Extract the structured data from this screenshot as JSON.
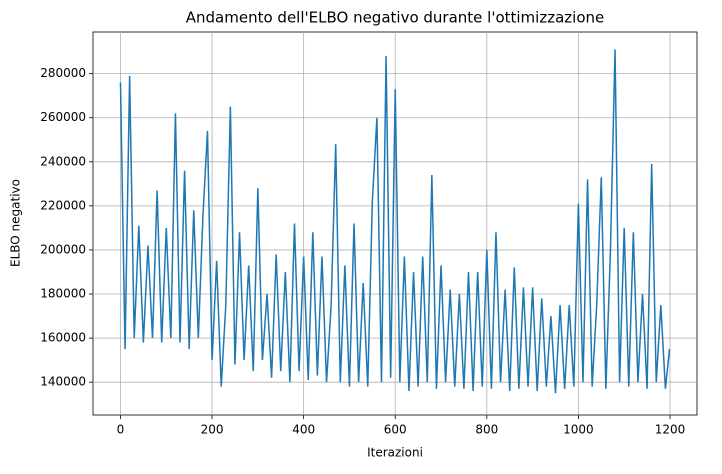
{
  "chart_data": {
    "type": "line",
    "title": "Andamento dell'ELBO negativo durante l'ottimizzazione",
    "xlabel": "Iterazioni",
    "ylabel": "ELBO negativo",
    "color": "#1f77b4",
    "grid": true,
    "xlim": [
      -60,
      1259
    ],
    "xticks": [
      0,
      200,
      400,
      600,
      800,
      1000,
      1200
    ],
    "ylim": [
      125100,
      298900
    ],
    "yticks": [
      140000,
      160000,
      180000,
      200000,
      220000,
      240000,
      260000,
      280000
    ],
    "x": [
      0,
      10,
      20,
      30,
      40,
      50,
      60,
      70,
      80,
      90,
      100,
      110,
      120,
      130,
      140,
      150,
      160,
      170,
      180,
      190,
      200,
      210,
      220,
      230,
      240,
      250,
      260,
      270,
      280,
      290,
      300,
      310,
      320,
      330,
      340,
      350,
      360,
      370,
      380,
      390,
      400,
      410,
      420,
      430,
      440,
      450,
      460,
      470,
      480,
      490,
      500,
      510,
      520,
      530,
      540,
      550,
      560,
      570,
      580,
      590,
      600,
      610,
      620,
      630,
      640,
      650,
      660,
      670,
      680,
      690,
      700,
      710,
      720,
      730,
      740,
      750,
      760,
      770,
      780,
      790,
      800,
      810,
      820,
      830,
      840,
      850,
      860,
      870,
      880,
      890,
      900,
      910,
      920,
      930,
      940,
      950,
      960,
      970,
      980,
      990,
      1000,
      1010,
      1020,
      1030,
      1040,
      1050,
      1060,
      1070,
      1080,
      1090,
      1100,
      1110,
      1120,
      1130,
      1140,
      1150,
      1160,
      1170,
      1180,
      1190,
      1199
    ],
    "values": [
      276000,
      155000,
      279000,
      160000,
      211000,
      158000,
      202000,
      160000,
      227000,
      158000,
      210000,
      160000,
      262000,
      158000,
      236000,
      155000,
      218000,
      160000,
      215000,
      254000,
      150000,
      195000,
      138000,
      175000,
      265000,
      148000,
      208000,
      150000,
      193000,
      145000,
      228000,
      150000,
      180000,
      142000,
      198000,
      145000,
      190000,
      140000,
      212000,
      145000,
      197000,
      141000,
      208000,
      143000,
      197000,
      140000,
      175000,
      248000,
      140000,
      193000,
      138000,
      212000,
      140000,
      185000,
      138000,
      222000,
      260000,
      140000,
      288000,
      142000,
      273000,
      140000,
      197000,
      136000,
      190000,
      138000,
      197000,
      140000,
      234000,
      137000,
      193000,
      140000,
      182000,
      138000,
      180000,
      137000,
      190000,
      136000,
      190000,
      138000,
      200000,
      137000,
      208000,
      140000,
      182000,
      136000,
      192000,
      137000,
      183000,
      138000,
      183000,
      136000,
      178000,
      138000,
      170000,
      135000,
      175000,
      137000,
      175000,
      138000,
      221000,
      140000,
      232000,
      138000,
      175000,
      233000,
      137000,
      200000,
      291000,
      140000,
      210000,
      138000,
      208000,
      140000,
      180000,
      137000,
      239000,
      140000,
      175000,
      137000,
      155000
    ]
  }
}
